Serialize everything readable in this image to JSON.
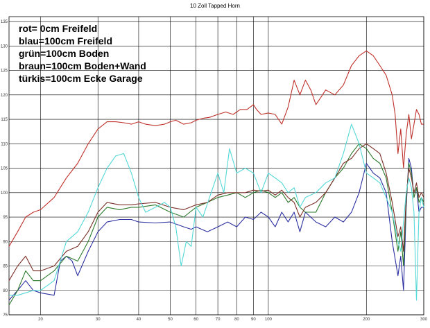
{
  "chart_data": {
    "type": "line",
    "title": "10 Zoll Tapped Horn",
    "xlabel": "",
    "ylabel": "",
    "x_scale": "log",
    "xlim": [
      16,
      300
    ],
    "ylim": [
      75,
      136
    ],
    "grid": true,
    "x_ticks": [
      20,
      30,
      40,
      50,
      60,
      70,
      80,
      90,
      100,
      200,
      300
    ],
    "y_ticks": [
      75,
      80,
      85,
      90,
      95,
      100,
      105,
      110,
      115,
      120,
      125,
      130,
      135
    ],
    "legend_lines": [
      "rot= 0cm Freifeld",
      "blau=100cm Freifeld",
      "grün=100cm Boden",
      "braun=100cm Boden+Wand",
      "türkis=100cm Ecke Garage"
    ],
    "legend_placement": "top-left",
    "series": [
      {
        "color": "#c0302a",
        "points": [
          [
            16,
            89
          ],
          [
            17,
            92
          ],
          [
            18,
            95
          ],
          [
            19,
            96
          ],
          [
            20,
            96.5
          ],
          [
            22,
            99
          ],
          [
            24,
            103
          ],
          [
            26,
            106
          ],
          [
            28,
            110
          ],
          [
            30,
            113
          ],
          [
            32,
            114.5
          ],
          [
            34,
            114.5
          ],
          [
            36,
            114.3
          ],
          [
            38,
            114
          ],
          [
            40,
            114.5
          ],
          [
            42,
            114
          ],
          [
            45,
            113.7
          ],
          [
            48,
            114
          ],
          [
            50,
            114.5
          ],
          [
            52,
            114.8
          ],
          [
            55,
            114
          ],
          [
            58,
            114.3
          ],
          [
            60,
            114.8
          ],
          [
            63,
            115.2
          ],
          [
            66,
            115.4
          ],
          [
            70,
            116
          ],
          [
            74,
            116.5
          ],
          [
            78,
            116
          ],
          [
            82,
            117
          ],
          [
            86,
            117
          ],
          [
            90,
            118
          ],
          [
            92,
            117
          ],
          [
            95,
            116
          ],
          [
            100,
            116.3
          ],
          [
            105,
            116
          ],
          [
            110,
            114
          ],
          [
            115,
            117.5
          ],
          [
            120,
            123
          ],
          [
            125,
            120
          ],
          [
            130,
            123
          ],
          [
            135,
            121
          ],
          [
            140,
            118
          ],
          [
            145,
            119.5
          ],
          [
            150,
            121
          ],
          [
            160,
            120
          ],
          [
            170,
            122
          ],
          [
            180,
            126
          ],
          [
            190,
            128
          ],
          [
            200,
            129
          ],
          [
            210,
            128
          ],
          [
            220,
            126
          ],
          [
            230,
            124
          ],
          [
            240,
            120
          ],
          [
            245,
            116
          ],
          [
            250,
            108
          ],
          [
            255,
            113
          ],
          [
            260,
            105
          ],
          [
            265,
            112
          ],
          [
            270,
            116
          ],
          [
            275,
            111
          ],
          [
            280,
            114
          ],
          [
            285,
            117
          ],
          [
            290,
            116
          ],
          [
            295,
            114
          ],
          [
            300,
            114
          ]
        ]
      },
      {
        "color": "#2b2fa1",
        "points": [
          [
            16,
            78
          ],
          [
            17,
            80
          ],
          [
            18,
            82
          ],
          [
            19,
            80
          ],
          [
            20,
            79.5
          ],
          [
            22,
            79
          ],
          [
            23,
            86
          ],
          [
            24,
            87
          ],
          [
            25,
            86
          ],
          [
            26,
            83
          ],
          [
            28,
            88
          ],
          [
            30,
            92
          ],
          [
            32,
            94
          ],
          [
            35,
            94.5
          ],
          [
            38,
            94.5
          ],
          [
            40,
            94
          ],
          [
            45,
            93.8
          ],
          [
            50,
            94
          ],
          [
            55,
            93
          ],
          [
            58,
            92.5
          ],
          [
            60,
            93
          ],
          [
            65,
            92
          ],
          [
            70,
            93
          ],
          [
            75,
            94
          ],
          [
            80,
            93
          ],
          [
            85,
            95
          ],
          [
            90,
            94.5
          ],
          [
            95,
            96
          ],
          [
            100,
            95
          ],
          [
            105,
            93
          ],
          [
            110,
            96
          ],
          [
            115,
            94
          ],
          [
            120,
            96
          ],
          [
            125,
            92
          ],
          [
            130,
            96
          ],
          [
            140,
            94
          ],
          [
            150,
            93
          ],
          [
            160,
            95
          ],
          [
            170,
            94
          ],
          [
            180,
            96
          ],
          [
            190,
            100
          ],
          [
            200,
            106
          ],
          [
            210,
            104
          ],
          [
            220,
            103
          ],
          [
            230,
            100
          ],
          [
            240,
            90
          ],
          [
            250,
            83
          ],
          [
            255,
            87
          ],
          [
            260,
            80
          ],
          [
            265,
            97
          ],
          [
            270,
            107
          ],
          [
            275,
            105
          ],
          [
            280,
            99
          ],
          [
            285,
            101
          ],
          [
            290,
            96
          ],
          [
            295,
            97
          ],
          [
            300,
            97
          ]
        ]
      },
      {
        "color": "#2c7a2c",
        "points": [
          [
            16,
            77
          ],
          [
            17,
            80
          ],
          [
            18,
            84
          ],
          [
            19,
            82
          ],
          [
            20,
            82
          ],
          [
            22,
            84
          ],
          [
            24,
            87
          ],
          [
            26,
            86
          ],
          [
            28,
            90
          ],
          [
            30,
            95
          ],
          [
            32,
            97
          ],
          [
            35,
            96.5
          ],
          [
            38,
            97
          ],
          [
            40,
            97
          ],
          [
            45,
            97.5
          ],
          [
            50,
            96
          ],
          [
            55,
            95
          ],
          [
            60,
            97
          ],
          [
            65,
            98
          ],
          [
            70,
            99
          ],
          [
            75,
            99.5
          ],
          [
            80,
            100
          ],
          [
            85,
            99
          ],
          [
            90,
            100
          ],
          [
            95,
            100.5
          ],
          [
            100,
            100
          ],
          [
            105,
            99
          ],
          [
            110,
            100
          ],
          [
            115,
            98
          ],
          [
            120,
            99
          ],
          [
            125,
            97
          ],
          [
            130,
            96
          ],
          [
            140,
            96
          ],
          [
            150,
            100
          ],
          [
            160,
            103
          ],
          [
            170,
            105
          ],
          [
            180,
            108
          ],
          [
            190,
            110
          ],
          [
            200,
            109
          ],
          [
            210,
            107
          ],
          [
            220,
            106
          ],
          [
            230,
            103
          ],
          [
            240,
            96
          ],
          [
            250,
            88
          ],
          [
            255,
            92
          ],
          [
            260,
            85
          ],
          [
            265,
            98
          ],
          [
            270,
            106
          ],
          [
            275,
            104
          ],
          [
            280,
            99
          ],
          [
            285,
            101
          ],
          [
            290,
            98
          ],
          [
            295,
            99
          ],
          [
            300,
            98
          ]
        ]
      },
      {
        "color": "#7a2e26",
        "points": [
          [
            16,
            82
          ],
          [
            17,
            85
          ],
          [
            18,
            87
          ],
          [
            19,
            84
          ],
          [
            20,
            84
          ],
          [
            22,
            85
          ],
          [
            24,
            88
          ],
          [
            26,
            89
          ],
          [
            28,
            92
          ],
          [
            30,
            96
          ],
          [
            32,
            98
          ],
          [
            35,
            97.5
          ],
          [
            38,
            97.5
          ],
          [
            40,
            97.7
          ],
          [
            45,
            98
          ],
          [
            50,
            97
          ],
          [
            55,
            96.5
          ],
          [
            60,
            97.5
          ],
          [
            65,
            98
          ],
          [
            70,
            99.5
          ],
          [
            75,
            100
          ],
          [
            80,
            100
          ],
          [
            85,
            100
          ],
          [
            90,
            100.5
          ],
          [
            95,
            100.3
          ],
          [
            100,
            100.5
          ],
          [
            105,
            99.5
          ],
          [
            110,
            100.5
          ],
          [
            115,
            99
          ],
          [
            120,
            98
          ],
          [
            125,
            95
          ],
          [
            130,
            97
          ],
          [
            140,
            98
          ],
          [
            150,
            100
          ],
          [
            160,
            103
          ],
          [
            170,
            106
          ],
          [
            180,
            107
          ],
          [
            190,
            109
          ],
          [
            200,
            110
          ],
          [
            210,
            109
          ],
          [
            220,
            108
          ],
          [
            230,
            104
          ],
          [
            240,
            98
          ],
          [
            250,
            91
          ],
          [
            255,
            93
          ],
          [
            260,
            88
          ],
          [
            265,
            99
          ],
          [
            270,
            105
          ],
          [
            275,
            103
          ],
          [
            280,
            100
          ],
          [
            285,
            102
          ],
          [
            290,
            99
          ],
          [
            295,
            100
          ],
          [
            300,
            99
          ]
        ]
      },
      {
        "color": "#54d8d8",
        "points": [
          [
            16,
            79
          ],
          [
            17,
            79
          ],
          [
            18,
            79.5
          ],
          [
            19,
            80
          ],
          [
            20,
            80
          ],
          [
            22,
            82
          ],
          [
            24,
            90
          ],
          [
            26,
            92
          ],
          [
            28,
            96
          ],
          [
            30,
            101
          ],
          [
            32,
            105
          ],
          [
            34,
            107.5
          ],
          [
            36,
            108
          ],
          [
            38,
            104
          ],
          [
            40,
            99
          ],
          [
            42,
            96
          ],
          [
            45,
            97
          ],
          [
            48,
            98
          ],
          [
            50,
            97
          ],
          [
            52,
            93
          ],
          [
            54,
            85
          ],
          [
            56,
            90
          ],
          [
            58,
            89
          ],
          [
            60,
            97
          ],
          [
            63,
            95
          ],
          [
            66,
            99
          ],
          [
            70,
            104
          ],
          [
            73,
            100
          ],
          [
            76,
            109
          ],
          [
            80,
            104
          ],
          [
            85,
            105
          ],
          [
            90,
            104
          ],
          [
            95,
            100
          ],
          [
            100,
            104
          ],
          [
            105,
            103
          ],
          [
            110,
            102
          ],
          [
            115,
            100
          ],
          [
            120,
            101
          ],
          [
            125,
            97
          ],
          [
            130,
            99
          ],
          [
            140,
            100
          ],
          [
            150,
            102
          ],
          [
            160,
            103
          ],
          [
            170,
            108
          ],
          [
            180,
            114
          ],
          [
            190,
            110
          ],
          [
            200,
            104
          ],
          [
            210,
            103
          ],
          [
            220,
            102
          ],
          [
            230,
            99
          ],
          [
            240,
            96
          ],
          [
            250,
            90
          ],
          [
            255,
            88
          ],
          [
            260,
            94
          ],
          [
            265,
            100
          ],
          [
            270,
            103
          ],
          [
            275,
            101
          ],
          [
            280,
            96
          ],
          [
            285,
            78
          ],
          [
            290,
            96
          ],
          [
            295,
            99
          ],
          [
            300,
            97
          ]
        ]
      }
    ]
  }
}
